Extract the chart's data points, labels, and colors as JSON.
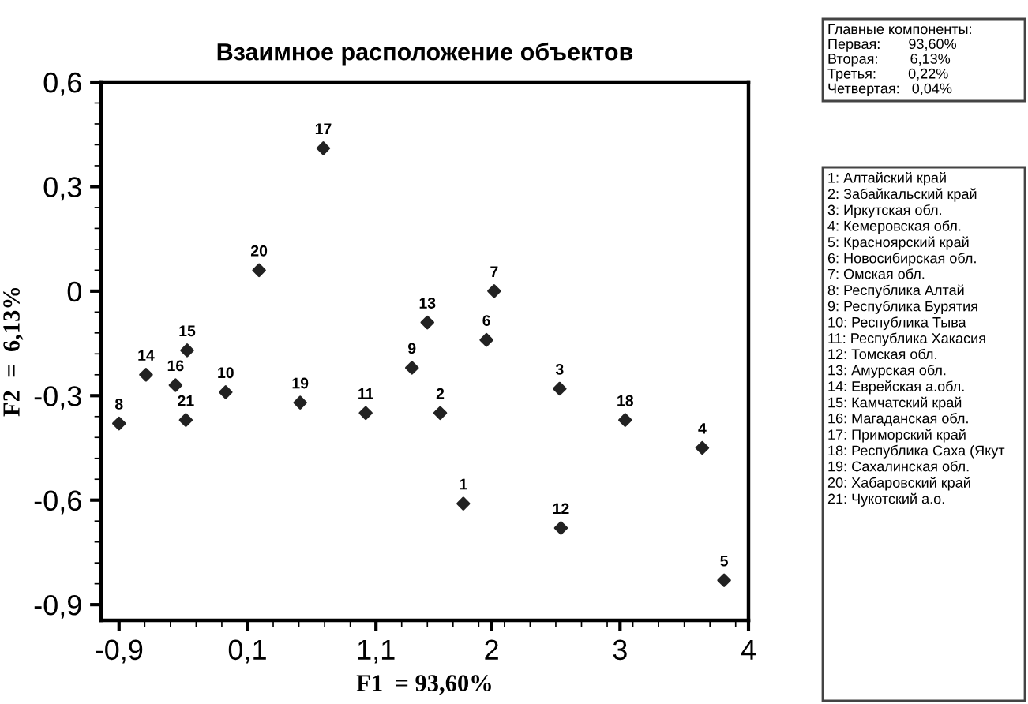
{
  "chart_data": {
    "type": "scatter",
    "title": "Взаимное расположение объектов",
    "xlabel": "F1  = 93,60%",
    "ylabel": "F2  =  6,13%",
    "x": [
      1.78,
      1.6,
      2.53,
      3.64,
      3.81,
      1.96,
      2.02,
      -0.9,
      1.38,
      -0.07,
      1.02,
      2.54,
      1.5,
      -0.69,
      -0.37,
      -0.46,
      0.69,
      3.04,
      0.51,
      0.19,
      -0.38
    ],
    "values": [
      -0.61,
      -0.35,
      -0.28,
      -0.45,
      -0.83,
      -0.14,
      0.0,
      -0.38,
      -0.22,
      -0.29,
      -0.35,
      -0.68,
      -0.09,
      -0.24,
      -0.17,
      -0.27,
      0.41,
      -0.37,
      -0.32,
      0.06,
      -0.37
    ],
    "color": "#222222",
    "marker": "diamond",
    "xlim": [
      -1.04,
      4
    ],
    "ylim": [
      -0.945,
      0.6
    ],
    "xticks": [
      {
        "value": -0.9,
        "label": "-0,9"
      },
      {
        "value": 0.1,
        "label": "0,1"
      },
      {
        "value": 1.1,
        "label": "1,1"
      },
      2,
      3,
      4
    ],
    "yticks": [
      {
        "value": 0.6,
        "label": "0,6"
      },
      {
        "value": 0.3,
        "label": "0,3"
      },
      0,
      {
        "value": -0.3,
        "label": "-0,3"
      },
      {
        "value": -0.6,
        "label": "-0,6"
      },
      {
        "value": -0.9,
        "label": "-0,9"
      }
    ],
    "grid": false,
    "legend": false,
    "annotations": [
      "Главные компоненты:\nПервая:       93,60%\nВторая:        6,13%\nТретья:        0,22%\nЧетвертая:   0,04%",
      "1: Алтайский край\n2: Забайкальский край\n3: Иркутская обл.\n4: Кемеровская обл.\n5: Красноярский край\n6: Новосибирская обл.\n7: Омская обл.\n8: Республика Алтай\n9: Республика Бурятия\n10: Республика Тыва\n11: Республика Хакасия\n12: Томская обл.\n13: Амурская обл.\n14: Еврейская а.обл.\n15: Камчатский край\n16: Магаданская обл.\n17: Приморский край\n18: Республика Саха (Якут\n19: Сахалинская обл.\n20: Хабаровский край\n21: Чукотский а.о.",
      {
        "text": "1",
        "x": 1.78,
        "y": -0.61
      },
      {
        "text": "2",
        "x": 1.6,
        "y": -0.35
      },
      {
        "text": "3",
        "x": 2.53,
        "y": -0.28
      },
      {
        "text": "4",
        "x": 3.64,
        "y": -0.45
      },
      {
        "text": "5",
        "x": 3.81,
        "y": -0.83
      },
      {
        "text": "6",
        "x": 1.96,
        "y": -0.14
      },
      {
        "text": "7",
        "x": 2.02,
        "y": 0.0
      },
      {
        "text": "8",
        "x": -0.9,
        "y": -0.38
      },
      {
        "text": "9",
        "x": 1.38,
        "y": -0.22
      },
      {
        "text": "10",
        "x": -0.07,
        "y": -0.29
      },
      {
        "text": "11",
        "x": 1.02,
        "y": -0.35
      },
      {
        "text": "12",
        "x": 2.54,
        "y": -0.68
      },
      {
        "text": "13",
        "x": 1.5,
        "y": -0.09
      },
      {
        "text": "14",
        "x": -0.69,
        "y": -0.24
      },
      {
        "text": "15",
        "x": -0.37,
        "y": -0.17
      },
      {
        "text": "16",
        "x": -0.46,
        "y": -0.27
      },
      {
        "text": "17",
        "x": 0.69,
        "y": 0.41
      },
      {
        "text": "18",
        "x": 3.04,
        "y": -0.37
      },
      {
        "text": "19",
        "x": 0.51,
        "y": -0.32
      },
      {
        "text": "20",
        "x": 0.19,
        "y": 0.06
      },
      {
        "text": "21",
        "x": -0.38,
        "y": -0.37
      }
    ]
  }
}
